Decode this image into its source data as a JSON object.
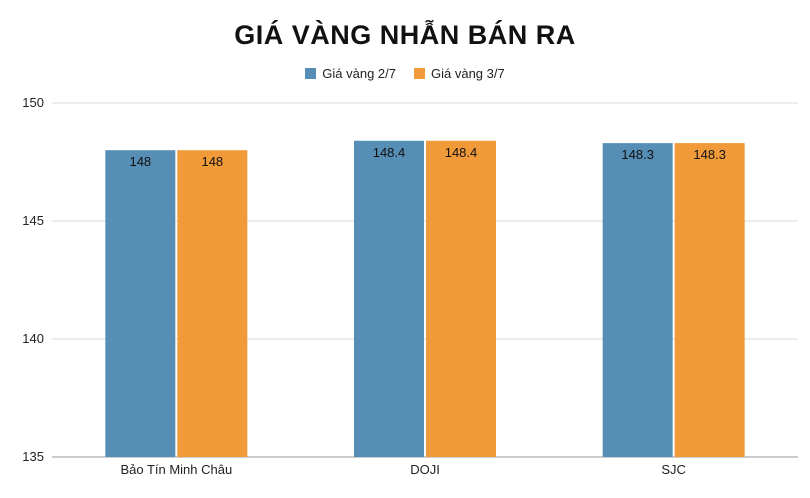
{
  "chart_data": {
    "type": "bar",
    "title": "GIÁ VÀNG NHẪN BÁN RA",
    "categories": [
      "Bảo Tín Minh Châu",
      "DOJI",
      "SJC"
    ],
    "series": [
      {
        "name": "Giá vàng 2/7",
        "values": [
          148,
          148.4,
          148.3
        ],
        "labels": [
          "148",
          "148.4",
          "148.3"
        ],
        "color": "#568eb6"
      },
      {
        "name": "Giá vàng 3/7",
        "values": [
          148,
          148.4,
          148.3
        ],
        "labels": [
          "148",
          "148.4",
          "148.3"
        ],
        "color": "#f09a3a"
      }
    ],
    "ylim": [
      135,
      150
    ],
    "yticks": [
      "135",
      "140",
      "145",
      "150"
    ],
    "ytick_values": [
      135,
      140,
      145,
      150
    ],
    "xlabel": "",
    "ylabel": "",
    "grid": true,
    "legend_position": "top"
  }
}
